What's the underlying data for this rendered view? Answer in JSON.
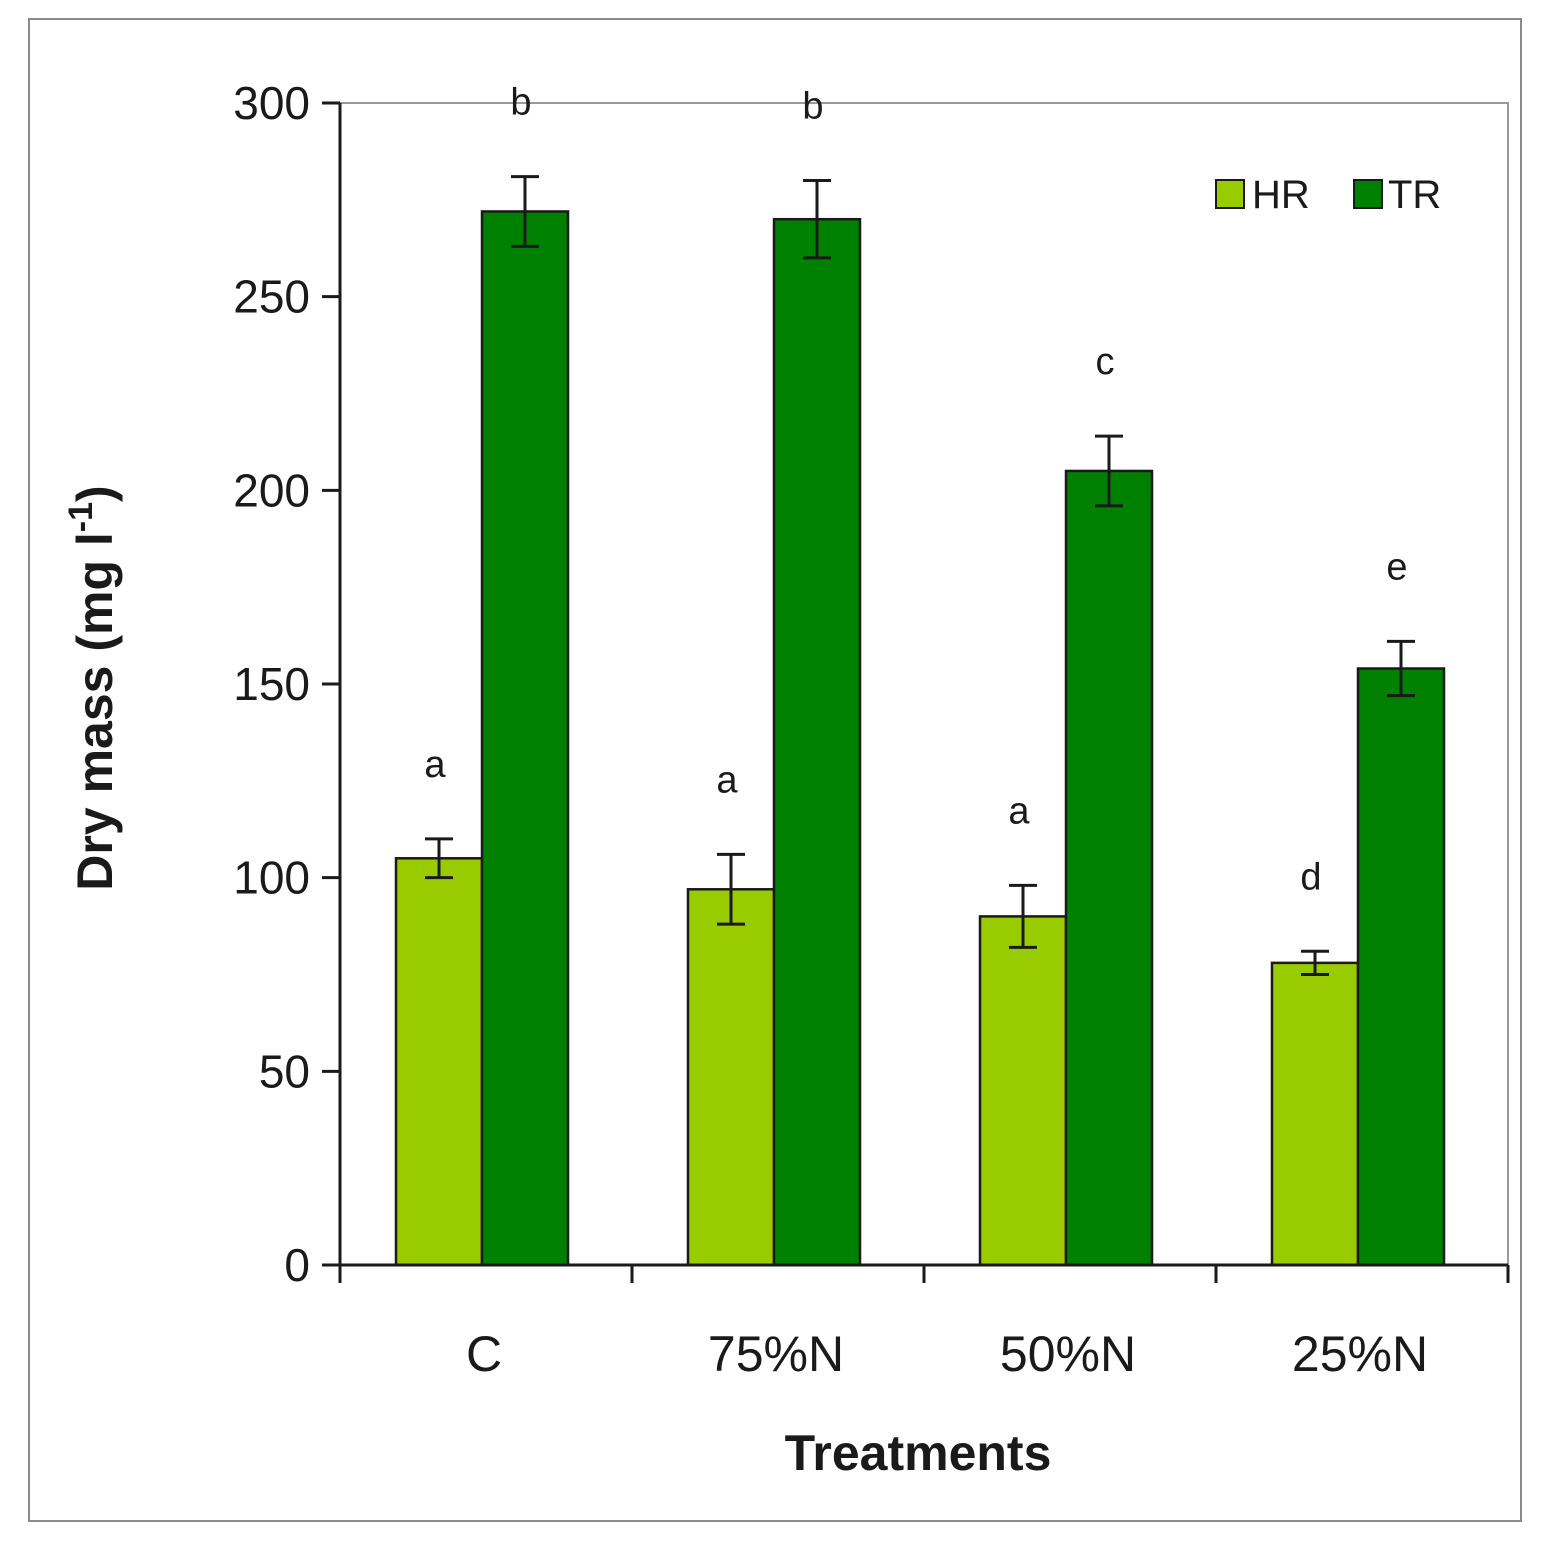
{
  "chart_data": {
    "type": "bar",
    "title": "",
    "xlabel": "Treatments",
    "ylabel": "Dry mass (mg l",
    "ylabel_sup": "-1",
    "ylabel_end": ")",
    "ylim": [
      0,
      300
    ],
    "yticks": [
      "0",
      "50",
      "100",
      "150",
      "200",
      "250",
      "300"
    ],
    "categories": [
      "C",
      "75%N",
      "50%N",
      "25%N"
    ],
    "legend_position": "top-right",
    "series": [
      {
        "name": "HR",
        "color": "#99cc00",
        "values": [
          105,
          97,
          90,
          78
        ],
        "errors": [
          5,
          9,
          8,
          3
        ],
        "letters": [
          "a",
          "a",
          "a",
          "d"
        ]
      },
      {
        "name": "TR",
        "color": "#008000",
        "values": [
          272,
          270,
          205,
          154
        ],
        "errors": [
          9,
          10,
          9,
          7
        ],
        "letters": [
          "b",
          "b",
          "c",
          "e"
        ]
      }
    ]
  }
}
